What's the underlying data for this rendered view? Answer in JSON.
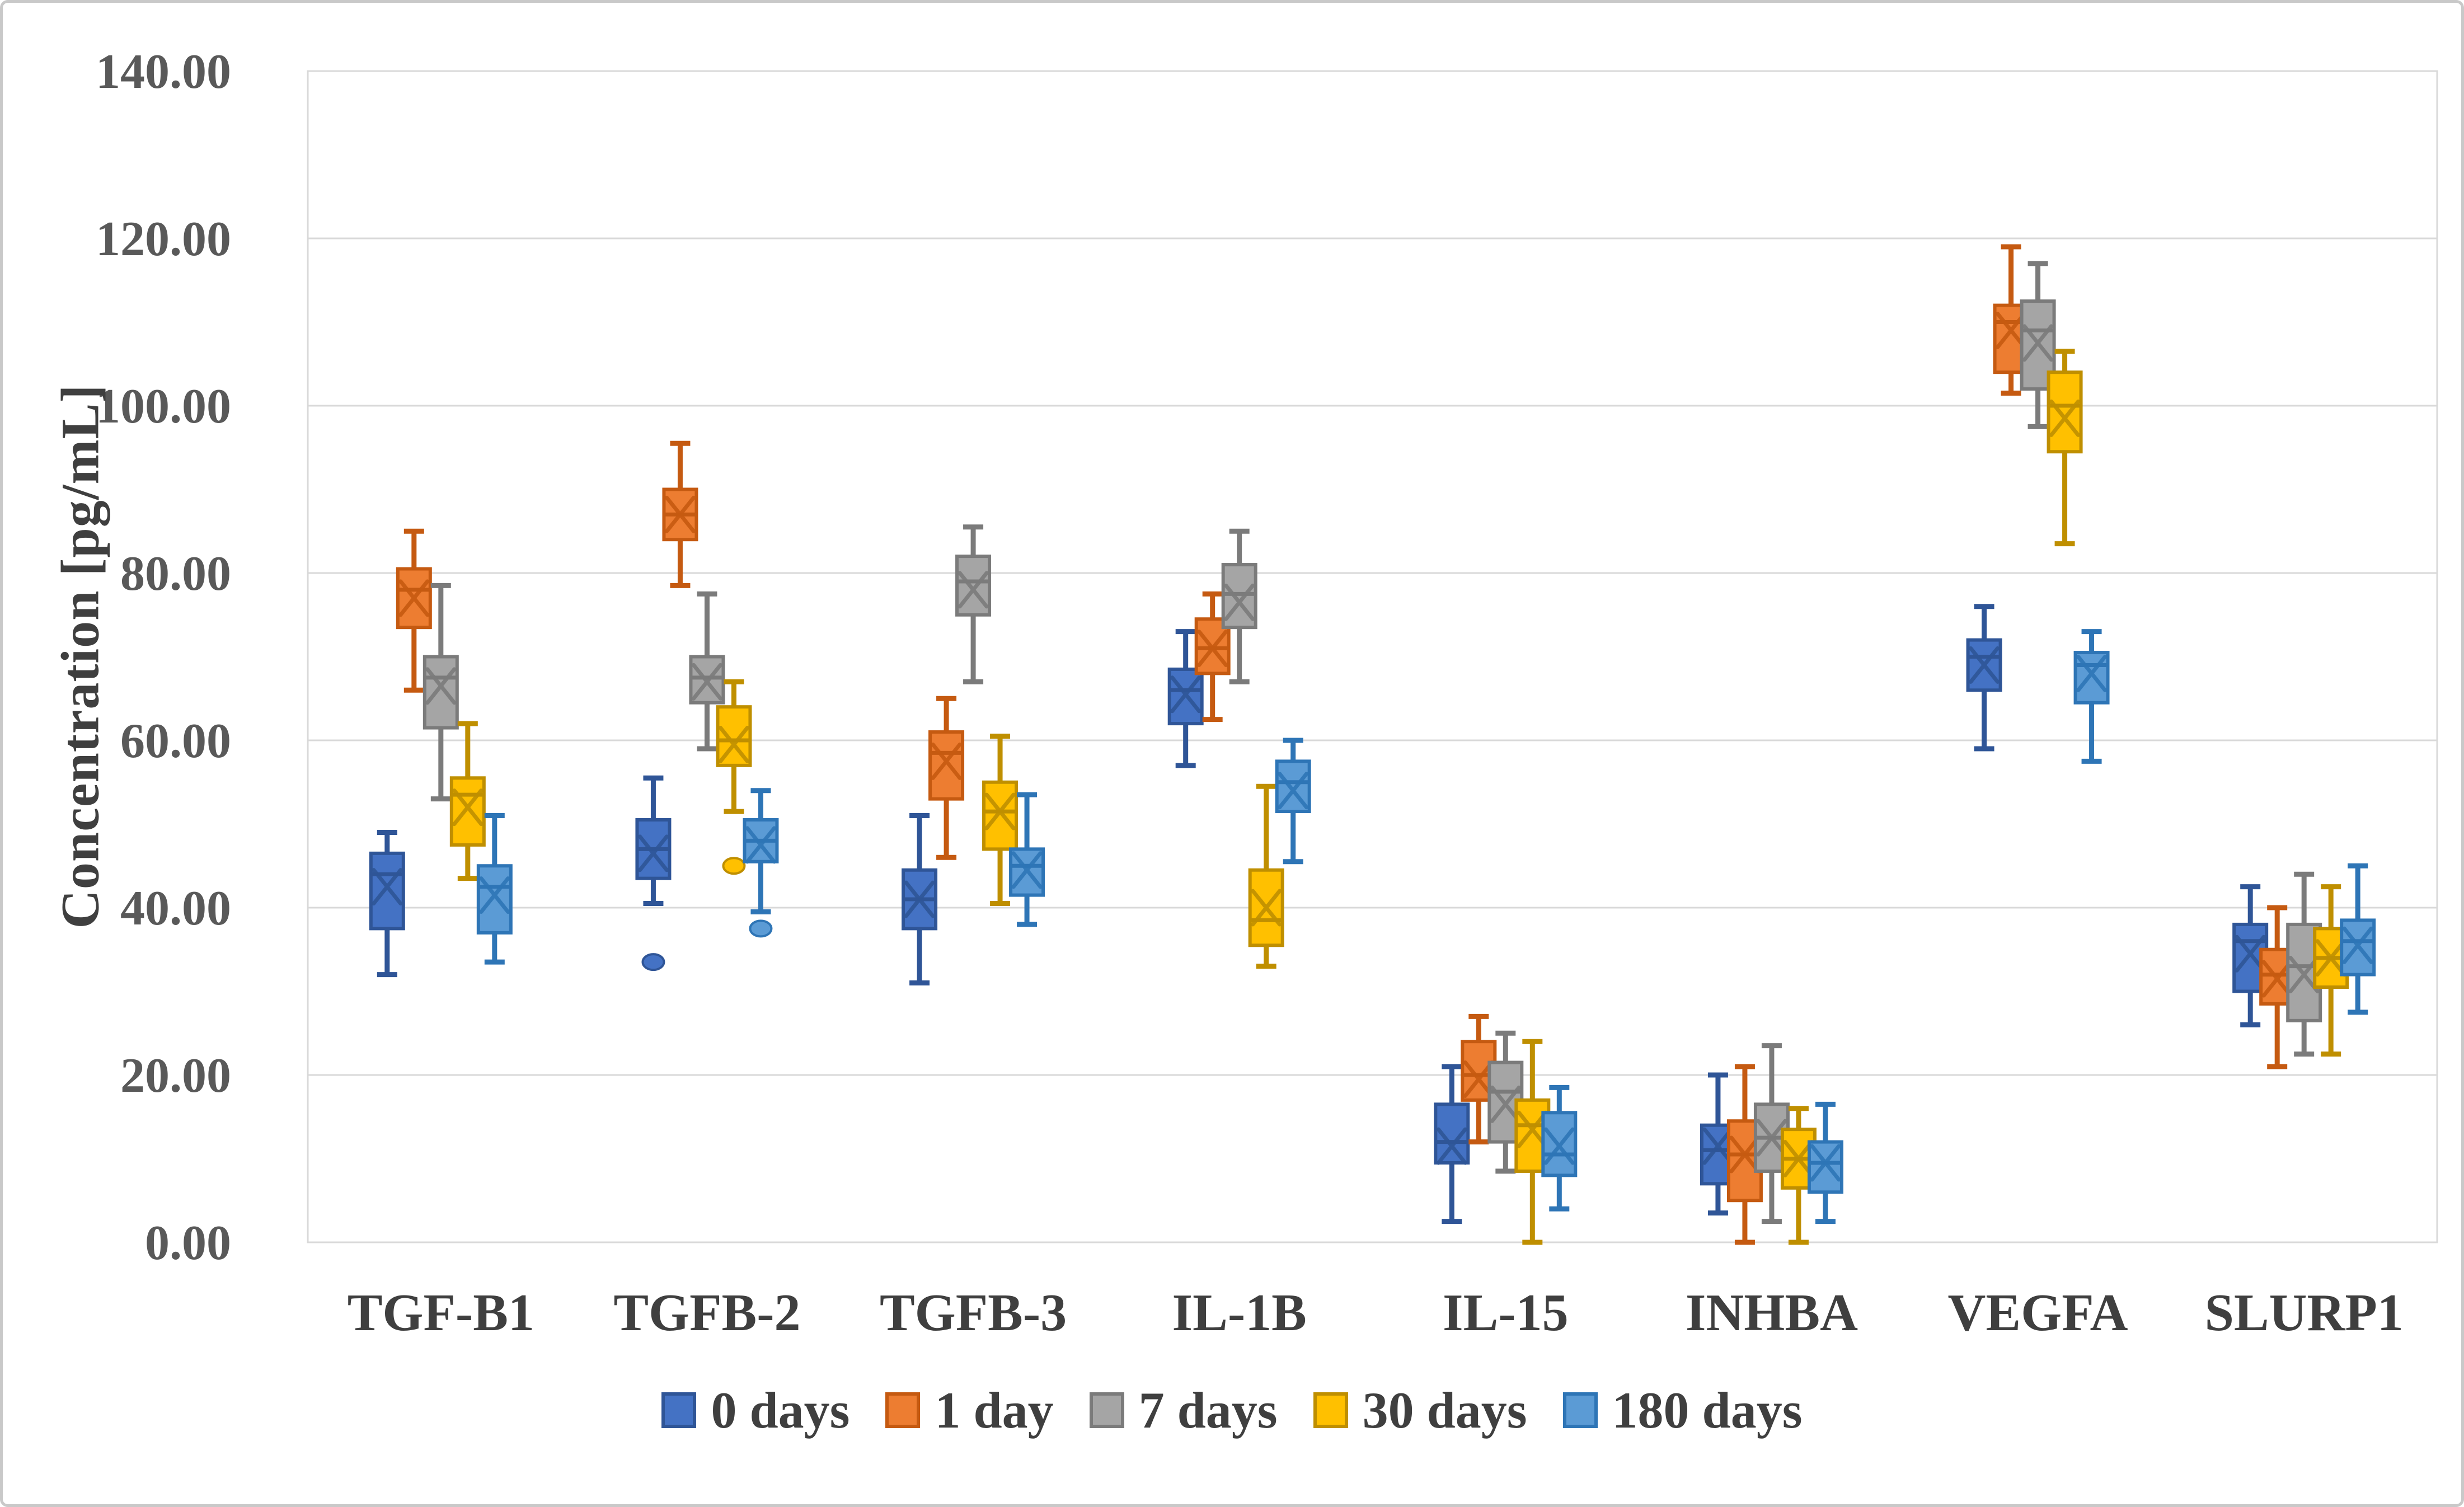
{
  "figure": {
    "background_color": "#FFFFFF",
    "border_color": "#C9C9C9",
    "gridline_color": "#D9D9D9",
    "text_color": "#3F3F3F",
    "tick_text_color": "#595959"
  },
  "chart_data": {
    "type": "boxplot",
    "title": "",
    "xlabel": "",
    "ylabel": "Concentration [pg/mL]",
    "grid": true,
    "legend_position": "bottom",
    "y_axis": {
      "min": 0,
      "max": 140,
      "step": 20,
      "tick_labels": [
        "0.00",
        "20.00",
        "40.00",
        "60.00",
        "80.00",
        "100.00",
        "120.00",
        "140.00"
      ]
    },
    "categories": [
      "TGF-B1",
      "TGFB-2",
      "TGFB-3",
      "IL-1B",
      "IL-15",
      "INHBA",
      "VEGFA",
      "SLURP1"
    ],
    "series": [
      {
        "name": "0 days",
        "color": "#4472C4",
        "border_color": "#2F5597",
        "boxes": [
          {
            "low": 32,
            "q1": 37.5,
            "median": 44,
            "mean": 42.5,
            "q3": 46.5,
            "high": 49,
            "outliers": []
          },
          {
            "low": 40.5,
            "q1": 43.5,
            "median": 47,
            "mean": 46.5,
            "q3": 50.5,
            "high": 55.5,
            "outliers": [
              33.5
            ]
          },
          {
            "low": 31,
            "q1": 37.5,
            "median": 41,
            "mean": 41,
            "q3": 44.5,
            "high": 51,
            "outliers": []
          },
          {
            "low": 57,
            "q1": 62,
            "median": 66,
            "mean": 65.5,
            "q3": 68.5,
            "high": 73,
            "outliers": []
          },
          {
            "low": 2.5,
            "q1": 9.5,
            "median": 12,
            "mean": 11.5,
            "q3": 16.5,
            "high": 21,
            "outliers": []
          },
          {
            "low": 3.5,
            "q1": 7,
            "median": 11,
            "mean": 11.5,
            "q3": 14,
            "high": 20,
            "outliers": []
          },
          {
            "low": 59,
            "q1": 66,
            "median": 70,
            "mean": 69,
            "q3": 72,
            "high": 76,
            "outliers": []
          },
          {
            "low": 26,
            "q1": 30,
            "median": 36,
            "mean": 34.5,
            "q3": 38,
            "high": 42.5,
            "outliers": []
          }
        ]
      },
      {
        "name": "1 day",
        "color": "#ED7D31",
        "border_color": "#C55A11",
        "boxes": [
          {
            "low": 66,
            "q1": 73.5,
            "median": 78,
            "mean": 77,
            "q3": 80.5,
            "high": 85,
            "outliers": []
          },
          {
            "low": 78.5,
            "q1": 84,
            "median": 87,
            "mean": 87,
            "q3": 90,
            "high": 95.5,
            "outliers": []
          },
          {
            "low": 46,
            "q1": 53,
            "median": 58.5,
            "mean": 57.5,
            "q3": 61,
            "high": 65,
            "outliers": []
          },
          {
            "low": 62.5,
            "q1": 68,
            "median": 71,
            "mean": 71,
            "q3": 74.5,
            "high": 77.5,
            "outliers": []
          },
          {
            "low": 12,
            "q1": 17,
            "median": 20,
            "mean": 19.5,
            "q3": 24,
            "high": 27,
            "outliers": []
          },
          {
            "low": 0,
            "q1": 5,
            "median": 10.5,
            "mean": 10.5,
            "q3": 14.5,
            "high": 21,
            "outliers": []
          },
          {
            "low": 101.5,
            "q1": 104,
            "median": 110,
            "mean": 109,
            "q3": 112,
            "high": 119,
            "outliers": []
          },
          {
            "low": 21,
            "q1": 28.5,
            "median": 32,
            "mean": 31.5,
            "q3": 35,
            "high": 40,
            "outliers": []
          }
        ]
      },
      {
        "name": "7 days",
        "color": "#A5A5A5",
        "border_color": "#7B7B7B",
        "boxes": [
          {
            "low": 53,
            "q1": 61.5,
            "median": 67.5,
            "mean": 66.5,
            "q3": 70,
            "high": 78.5,
            "outliers": []
          },
          {
            "low": 59,
            "q1": 64.5,
            "median": 67.5,
            "mean": 67,
            "q3": 70,
            "high": 77.5,
            "outliers": []
          },
          {
            "low": 67,
            "q1": 75,
            "median": 79,
            "mean": 78,
            "q3": 82,
            "high": 85.5,
            "outliers": []
          },
          {
            "low": 67,
            "q1": 73.5,
            "median": 77.5,
            "mean": 76.5,
            "q3": 81,
            "high": 85,
            "outliers": []
          },
          {
            "low": 8.5,
            "q1": 12,
            "median": 18,
            "mean": 16.5,
            "q3": 21.5,
            "high": 25,
            "outliers": []
          },
          {
            "low": 2.5,
            "q1": 8.5,
            "median": 12.5,
            "mean": 12.5,
            "q3": 16.5,
            "high": 23.5,
            "outliers": []
          },
          {
            "low": 97.5,
            "q1": 102,
            "median": 109,
            "mean": 107.5,
            "q3": 112.5,
            "high": 117,
            "outliers": []
          },
          {
            "low": 22.5,
            "q1": 26.5,
            "median": 33,
            "mean": 32,
            "q3": 38,
            "high": 44,
            "outliers": []
          }
        ]
      },
      {
        "name": "30 days",
        "color": "#FFC000",
        "border_color": "#BF8F00",
        "boxes": [
          {
            "low": 43.5,
            "q1": 47.5,
            "median": 53.5,
            "mean": 52,
            "q3": 55.5,
            "high": 62,
            "outliers": []
          },
          {
            "low": 51.5,
            "q1": 57,
            "median": 60,
            "mean": 59.5,
            "q3": 64,
            "high": 67,
            "outliers": [
              45
            ]
          },
          {
            "low": 40.5,
            "q1": 47,
            "median": 51.5,
            "mean": 51.5,
            "q3": 55,
            "high": 60.5,
            "outliers": []
          },
          {
            "low": 33,
            "q1": 35.5,
            "median": 38.5,
            "mean": 40,
            "q3": 44.5,
            "high": 54.5,
            "outliers": []
          },
          {
            "low": 0,
            "q1": 8.5,
            "median": 14,
            "mean": 13.5,
            "q3": 17,
            "high": 24,
            "outliers": []
          },
          {
            "low": 0,
            "q1": 6.5,
            "median": 10,
            "mean": 10,
            "q3": 13.5,
            "high": 16,
            "outliers": []
          },
          {
            "low": 83.5,
            "q1": 94.5,
            "median": 100,
            "mean": 98.5,
            "q3": 104,
            "high": 106.5,
            "outliers": []
          },
          {
            "low": 22.5,
            "q1": 30.5,
            "median": 34,
            "mean": 34,
            "q3": 37.5,
            "high": 42.5,
            "outliers": []
          }
        ]
      },
      {
        "name": "180 days",
        "color": "#5B9BD5",
        "border_color": "#2E75B6",
        "boxes": [
          {
            "low": 33.5,
            "q1": 37,
            "median": 42.5,
            "mean": 41.5,
            "q3": 45,
            "high": 51,
            "outliers": []
          },
          {
            "low": 39.5,
            "q1": 45.5,
            "median": 48,
            "mean": 47.5,
            "q3": 50.5,
            "high": 54,
            "outliers": [
              37.5
            ]
          },
          {
            "low": 38,
            "q1": 41.5,
            "median": 45,
            "mean": 44.5,
            "q3": 47,
            "high": 53.5,
            "outliers": []
          },
          {
            "low": 45.5,
            "q1": 51.5,
            "median": 55,
            "mean": 54,
            "q3": 57.5,
            "high": 60,
            "outliers": []
          },
          {
            "low": 4,
            "q1": 8,
            "median": 10.5,
            "mean": 11.5,
            "q3": 15.5,
            "high": 18.5,
            "outliers": []
          },
          {
            "low": 2.5,
            "q1": 6,
            "median": 9.5,
            "mean": 9.5,
            "q3": 12,
            "high": 16.5,
            "outliers": []
          },
          {
            "low": 57.5,
            "q1": 64.5,
            "median": 69,
            "mean": 68,
            "q3": 70.5,
            "high": 73,
            "outliers": []
          },
          {
            "low": 27.5,
            "q1": 32,
            "median": 36,
            "mean": 35.5,
            "q3": 38.5,
            "high": 45,
            "outliers": []
          }
        ]
      }
    ]
  }
}
